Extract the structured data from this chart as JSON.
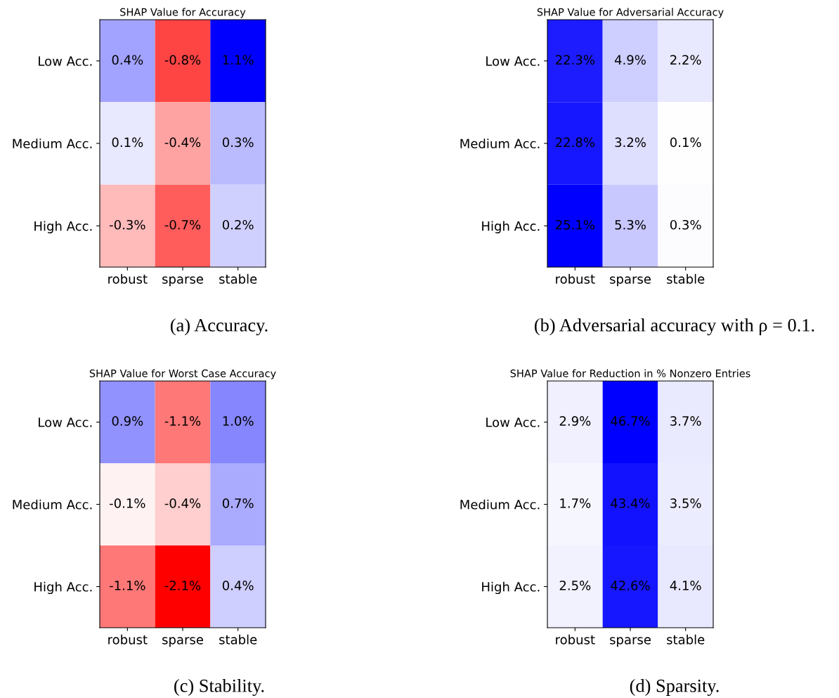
{
  "chart_data": [
    {
      "type": "heatmap",
      "title": "SHAP Value for Accuracy",
      "categories": [
        "robust",
        "sparse",
        "stable"
      ],
      "y_categories": [
        "Low Acc.",
        "Medium Acc.",
        "High Acc."
      ],
      "cells": [
        [
          0.4,
          -0.8,
          1.1
        ],
        [
          0.1,
          -0.4,
          0.3
        ],
        [
          -0.3,
          -0.7,
          0.2
        ]
      ],
      "cell_labels": [
        [
          "0.4%",
          "-0.8%",
          "1.1%"
        ],
        [
          "0.1%",
          "-0.4%",
          "0.3%"
        ],
        [
          "-0.3%",
          "-0.7%",
          "0.2%"
        ]
      ],
      "annotations": [
        "(a) Accuracy."
      ]
    },
    {
      "type": "heatmap",
      "title": "SHAP Value for Adversarial Accuracy",
      "categories": [
        "robust",
        "sparse",
        "stable"
      ],
      "y_categories": [
        "Low Acc.",
        "Medium Acc.",
        "High Acc."
      ],
      "cells": [
        [
          22.3,
          4.9,
          2.2
        ],
        [
          22.8,
          3.2,
          0.1
        ],
        [
          25.1,
          5.3,
          0.3
        ]
      ],
      "cell_labels": [
        [
          "22.3%",
          "4.9%",
          "2.2%"
        ],
        [
          "22.8%",
          "3.2%",
          "0.1%"
        ],
        [
          "25.1%",
          "5.3%",
          "0.3%"
        ]
      ],
      "annotations": [
        "(b) Adversarial accuracy with ρ = 0.1."
      ]
    },
    {
      "type": "heatmap",
      "title": "SHAP Value for Worst Case Accuracy",
      "categories": [
        "robust",
        "sparse",
        "stable"
      ],
      "y_categories": [
        "Low Acc.",
        "Medium Acc.",
        "High Acc."
      ],
      "cells": [
        [
          0.9,
          -1.1,
          1.0
        ],
        [
          -0.1,
          -0.4,
          0.7
        ],
        [
          -1.1,
          -2.1,
          0.4
        ]
      ],
      "cell_labels": [
        [
          "0.9%",
          "-1.1%",
          "1.0%"
        ],
        [
          "-0.1%",
          "-0.4%",
          "0.7%"
        ],
        [
          "-1.1%",
          "-2.1%",
          "0.4%"
        ]
      ],
      "annotations": [
        "(c) Stability."
      ]
    },
    {
      "type": "heatmap",
      "title": "SHAP Value for Reduction in % Nonzero Entries",
      "categories": [
        "robust",
        "sparse",
        "stable"
      ],
      "y_categories": [
        "Low Acc.",
        "Medium Acc.",
        "High Acc."
      ],
      "cells": [
        [
          2.9,
          46.7,
          3.7
        ],
        [
          1.7,
          43.4,
          3.5
        ],
        [
          2.5,
          42.6,
          4.1
        ]
      ],
      "cell_labels": [
        [
          "2.9%",
          "46.7%",
          "3.7%"
        ],
        [
          "1.7%",
          "43.4%",
          "3.5%"
        ],
        [
          "2.5%",
          "42.6%",
          "4.1%"
        ]
      ],
      "annotations": [
        "(d) Sparsity."
      ]
    }
  ]
}
